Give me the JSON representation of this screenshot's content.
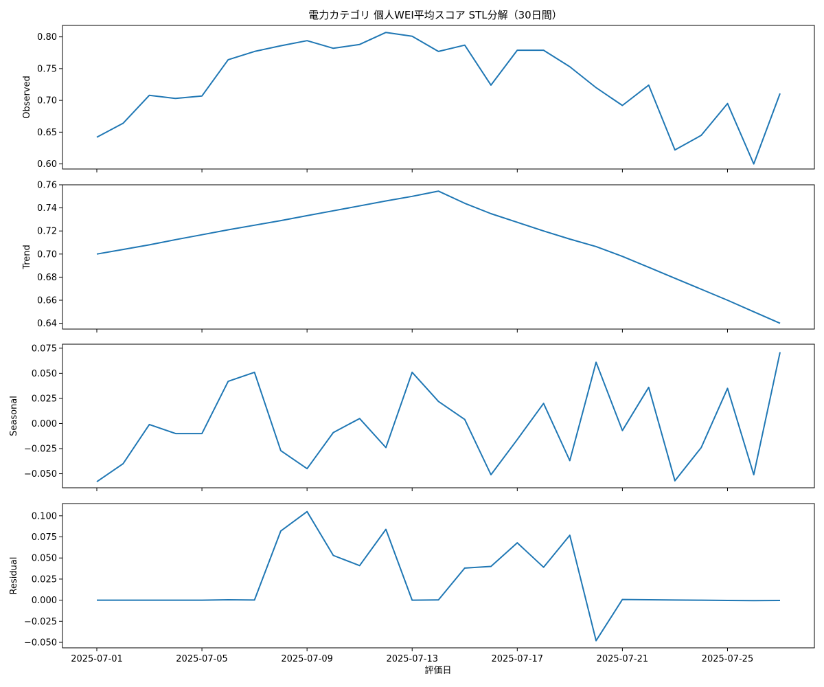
{
  "chart_data": {
    "type": "line",
    "title": "電力カテゴリ 個人WEI平均スコア STL分解（30日間）",
    "xlabel": "評価日",
    "x": [
      "2025-07-01",
      "2025-07-02",
      "2025-07-03",
      "2025-07-04",
      "2025-07-05",
      "2025-07-06",
      "2025-07-07",
      "2025-07-08",
      "2025-07-09",
      "2025-07-10",
      "2025-07-11",
      "2025-07-12",
      "2025-07-13",
      "2025-07-14",
      "2025-07-15",
      "2025-07-16",
      "2025-07-17",
      "2025-07-18",
      "2025-07-19",
      "2025-07-20",
      "2025-07-21",
      "2025-07-22",
      "2025-07-23",
      "2025-07-24",
      "2025-07-25",
      "2025-07-26",
      "2025-07-27"
    ],
    "x_ticks": [
      "2025-07-01",
      "2025-07-05",
      "2025-07-09",
      "2025-07-13",
      "2025-07-17",
      "2025-07-21",
      "2025-07-25"
    ],
    "line_color": "#1f77b4",
    "grid": false,
    "panels": [
      {
        "ylabel": "Observed",
        "ylim": [
          0.592,
          0.818
        ],
        "yticks": [
          "0.60",
          "0.65",
          "0.70",
          "0.75",
          "0.80"
        ],
        "values": [
          0.642,
          0.664,
          0.708,
          0.703,
          0.707,
          0.764,
          0.777,
          0.786,
          0.794,
          0.782,
          0.788,
          0.807,
          0.801,
          0.777,
          0.787,
          0.724,
          0.779,
          0.779,
          0.753,
          0.72,
          0.692,
          0.724,
          0.622,
          0.645,
          0.695,
          0.6,
          0.711
        ]
      },
      {
        "ylabel": "Trend",
        "ylim": [
          0.635,
          0.76
        ],
        "yticks": [
          "0.64",
          "0.66",
          "0.68",
          "0.70",
          "0.72",
          "0.74",
          "0.76"
        ],
        "values": [
          0.7,
          0.704,
          0.708,
          0.7125,
          0.7167,
          0.721,
          0.725,
          0.729,
          0.7333,
          0.7375,
          0.7417,
          0.746,
          0.75,
          0.7545,
          0.744,
          0.735,
          0.7275,
          0.72,
          0.713,
          0.7065,
          0.698,
          0.6885,
          0.679,
          0.6695,
          0.66,
          0.65,
          0.64
        ]
      },
      {
        "ylabel": "Seasonal",
        "ylim": [
          -0.064,
          0.079
        ],
        "yticks": [
          "−0.050",
          "−0.025",
          "0.000",
          "0.025",
          "0.050",
          "0.075"
        ],
        "values": [
          -0.058,
          -0.04,
          -0.001,
          -0.01,
          -0.01,
          0.042,
          0.051,
          -0.027,
          -0.045,
          -0.009,
          0.005,
          -0.024,
          0.051,
          0.022,
          0.004,
          -0.051,
          -0.016,
          0.02,
          -0.037,
          0.061,
          -0.007,
          0.036,
          -0.057,
          -0.024,
          0.035,
          -0.051,
          0.071
        ]
      },
      {
        "ylabel": "Residual",
        "ylim": [
          -0.0565,
          0.1145
        ],
        "yticks": [
          "−0.050",
          "−0.025",
          "0.000",
          "0.025",
          "0.050",
          "0.075",
          "0.100"
        ],
        "values": [
          0.0,
          0.0,
          0.0,
          0.0,
          0.0,
          0.0005,
          0.0002,
          0.082,
          0.105,
          0.053,
          0.041,
          0.084,
          0.0,
          0.0003,
          0.038,
          0.04,
          0.068,
          0.039,
          0.077,
          -0.048,
          0.0008,
          0.0005,
          0.0002,
          0.0,
          -0.0003,
          -0.0005,
          -0.0003
        ]
      }
    ]
  }
}
